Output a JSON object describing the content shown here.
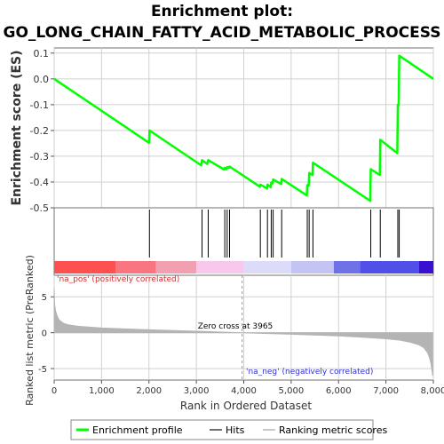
{
  "chart_data": {
    "type": "line",
    "title_line1": "Enrichment plot:",
    "title_line2": "GO_LONG_CHAIN_FATTY_ACID_METABOLIC_PROCESS",
    "es_ylabel": "Enrichment score (ES)",
    "metric_ylabel": "Ranked list metric (PreRanked)",
    "xlabel": "Rank in Ordered Dataset",
    "xlim": [
      0,
      8000
    ],
    "es_ylim": [
      -0.5,
      0.12
    ],
    "metric_ylim": [
      -6.6,
      8
    ],
    "x_ticks": [
      "0",
      "1,000",
      "2,000",
      "3,000",
      "4,000",
      "5,000",
      "6,000",
      "7,000",
      "8,000"
    ],
    "x_tick_values": [
      0,
      1000,
      2000,
      3000,
      4000,
      5000,
      6000,
      7000,
      8000
    ],
    "es_ticks": [
      "0.1",
      "0.0",
      "-0.1",
      "-0.2",
      "-0.3",
      "-0.4",
      "-0.5"
    ],
    "es_tick_values": [
      0.1,
      0.0,
      -0.1,
      -0.2,
      -0.3,
      -0.4,
      -0.5
    ],
    "metric_ticks": [
      "5",
      "0",
      "-5"
    ],
    "metric_tick_values": [
      5,
      0,
      -5
    ],
    "hits": [
      2010,
      3120,
      3250,
      3600,
      3650,
      3700,
      4350,
      4500,
      4580,
      4620,
      4800,
      5340,
      5380,
      5460,
      6680,
      6880,
      7250,
      7280
    ],
    "enrichment_profile": {
      "name": "Enrichment profile",
      "color": "#00ff00",
      "x": [
        0,
        2000,
        2010,
        3100,
        3120,
        3230,
        3250,
        3590,
        3600,
        3640,
        3650,
        3690,
        3700,
        4340,
        4350,
        4490,
        4500,
        4570,
        4580,
        4610,
        4620,
        4790,
        4800,
        5330,
        5340,
        5370,
        5380,
        5450,
        5460,
        6670,
        6680,
        6870,
        6880,
        7240,
        7250,
        7270,
        7280,
        8000
      ],
      "y": [
        0.0,
        -0.248,
        -0.2,
        -0.335,
        -0.315,
        -0.33,
        -0.315,
        -0.352,
        -0.345,
        -0.35,
        -0.342,
        -0.345,
        -0.34,
        -0.418,
        -0.41,
        -0.425,
        -0.41,
        -0.42,
        -0.402,
        -0.405,
        -0.39,
        -0.408,
        -0.388,
        -0.452,
        -0.412,
        -0.415,
        -0.365,
        -0.373,
        -0.325,
        -0.473,
        -0.35,
        -0.373,
        -0.236,
        -0.288,
        -0.1,
        -0.102,
        0.09,
        0.0
      ]
    },
    "ranked_metric": {
      "x": [
        0,
        10,
        30,
        60,
        100,
        200,
        300,
        500,
        1000,
        2000,
        3000,
        3965,
        5000,
        6000,
        6500,
        7000,
        7300,
        7500,
        7700,
        7800,
        7880,
        7920,
        7950,
        7970,
        7985
      ],
      "y": [
        6.2,
        4.0,
        3.0,
        2.4,
        1.8,
        1.3,
        1.1,
        0.9,
        0.65,
        0.4,
        0.2,
        0.0,
        -0.22,
        -0.45,
        -0.62,
        -0.85,
        -1.05,
        -1.3,
        -1.7,
        -2.1,
        -2.8,
        -3.5,
        -4.3,
        -5.2,
        -6.0
      ]
    },
    "zero_cross_label": "Zero cross at 3965",
    "zero_cross_x": 3965,
    "pos_label": "'na_pos' (positively correlated)",
    "neg_label": "'na_neg' (negatively correlated)",
    "heatmap_segments": [
      {
        "x0": 0,
        "x1": 1300,
        "color": "#fe5050"
      },
      {
        "x0": 1300,
        "x1": 2150,
        "color": "#f97580"
      },
      {
        "x0": 2150,
        "x1": 3000,
        "color": "#f0a0b0"
      },
      {
        "x0": 3000,
        "x1": 4000,
        "color": "#f8c8ec"
      },
      {
        "x0": 4000,
        "x1": 5000,
        "color": "#dcdcfa"
      },
      {
        "x0": 5000,
        "x1": 5900,
        "color": "#c4c4f4"
      },
      {
        "x0": 5900,
        "x1": 6450,
        "color": "#7070e8"
      },
      {
        "x0": 6450,
        "x1": 7700,
        "color": "#5050e8"
      },
      {
        "x0": 7700,
        "x1": 8000,
        "color": "#3a10d0"
      }
    ],
    "legend": [
      {
        "label": "Enrichment profile",
        "color": "#00ff00",
        "kind": "thick-line"
      },
      {
        "label": "Hits",
        "color": "#707070",
        "kind": "line"
      },
      {
        "label": "Ranking metric scores",
        "color": "#c8c8c8",
        "kind": "line"
      }
    ],
    "colors": {
      "profile": "#00ff00",
      "hit": "#000000",
      "metric_fill": "#b4b4b4",
      "pos_text": "#d03030",
      "neg_text": "#3030d0",
      "grid": "#d0d0d0",
      "axis": "#707070"
    }
  }
}
